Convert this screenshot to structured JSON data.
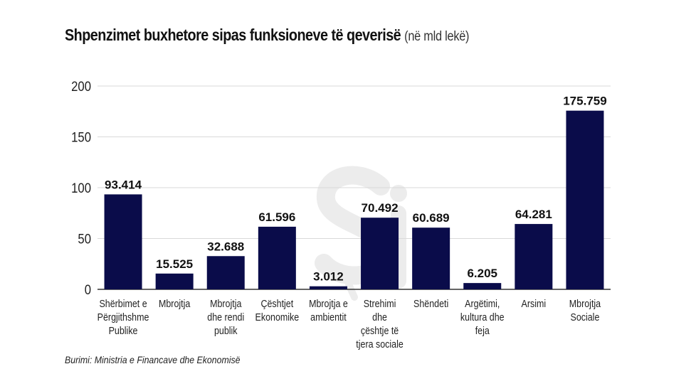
{
  "title": "Shpenzimet buxhetore sipas funksioneve të qeverisë",
  "title_unit": "(në mld lekë)",
  "source": "Burimi: Ministria e Financave dhe Ekonomisë",
  "watermark": "Şi",
  "colors": {
    "bar": "#0a0c4a",
    "grid": "#d9d9d9",
    "axis": "#333333",
    "watermark": "#ececec"
  },
  "chart_data": {
    "type": "bar",
    "title": "Shpenzimet buxhetore sipas funksioneve të qeverisë (në mld lekë)",
    "xlabel": "",
    "ylabel": "",
    "ylim": [
      0,
      200
    ],
    "yticks": [
      0,
      50,
      100,
      150,
      200
    ],
    "grid": true,
    "categories": [
      "Shërbimet e Përgjithshme Publike",
      "Mbrojtja",
      "Mbrojtja dhe rendi publik",
      "Çështjet Ekonomike",
      "Mbrojtja e ambientit",
      "Strehimi dhe çështje të tjera sociale",
      "Shëndeti",
      "Argëtimi, kultura dhe feja",
      "Arsimi",
      "Mbrojtja Sociale"
    ],
    "category_lines": [
      [
        "Shërbimet e",
        "Përgjithshme",
        "Publike"
      ],
      [
        "Mbrojtja"
      ],
      [
        "Mbrojtja",
        "dhe rendi",
        "publik"
      ],
      [
        "Çështjet",
        "Ekonomike"
      ],
      [
        "Mbrojtja e",
        "ambientit"
      ],
      [
        "Strehimi",
        "dhe",
        "çështje të",
        "tjera sociale"
      ],
      [
        "Shëndeti"
      ],
      [
        "Argëtimi,",
        "kultura dhe",
        "feja"
      ],
      [
        "Arsimi"
      ],
      [
        "Mbrojtja",
        "Sociale"
      ]
    ],
    "values": [
      93.414,
      15.525,
      32.688,
      61.596,
      3.012,
      70.492,
      60.689,
      6.205,
      64.281,
      175.759
    ],
    "data_labels": [
      "93.414",
      "15.525",
      "32.688",
      "61.596",
      "3.012",
      "70.492",
      "60.689",
      "6.205",
      "64.281",
      "175.759"
    ]
  }
}
